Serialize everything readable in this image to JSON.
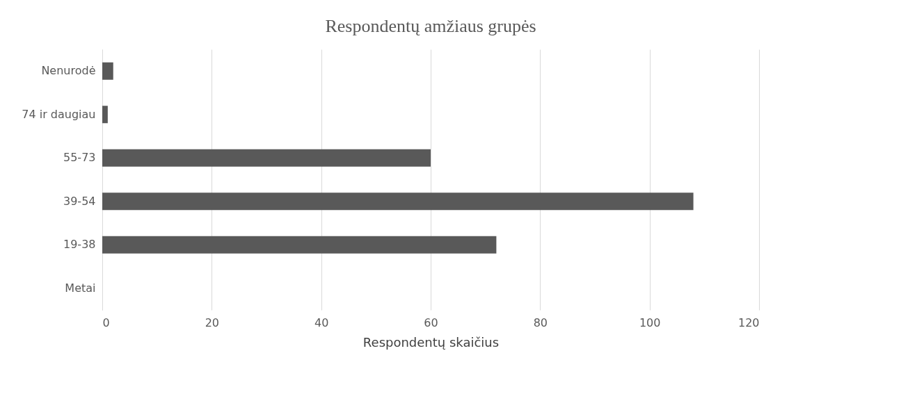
{
  "chart_data": {
    "type": "bar",
    "orientation": "horizontal",
    "title": "Respondentų amžiaus grupės",
    "xlabel": "Respondentų skaičius",
    "categories": [
      "Nenurodė",
      "74 ir daugiau",
      "55-73",
      "39-54",
      "19-38",
      "Metai"
    ],
    "values": [
      2,
      1,
      60,
      108,
      72,
      0
    ],
    "color": "#595959",
    "xlim": [
      0,
      120
    ],
    "xticks": [
      0,
      20,
      40,
      60,
      80,
      100,
      120
    ],
    "grid": "x"
  }
}
